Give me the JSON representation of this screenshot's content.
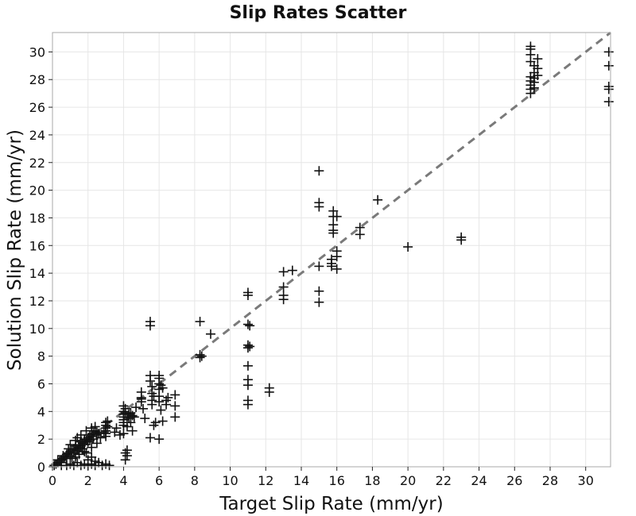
{
  "chart_data": {
    "type": "scatter",
    "title": "Slip Rates Scatter",
    "xlabel": "Target Slip Rate (mm/yr)",
    "ylabel": "Solution Slip Rate (mm/yr)",
    "xlim": [
      0,
      31.4
    ],
    "ylim": [
      0,
      31.4
    ],
    "xticks": [
      0,
      2,
      4,
      6,
      8,
      10,
      12,
      14,
      16,
      18,
      20,
      22,
      24,
      26,
      28,
      30
    ],
    "yticks": [
      0,
      2,
      4,
      6,
      8,
      10,
      12,
      14,
      16,
      18,
      20,
      22,
      24,
      26,
      28,
      30
    ],
    "grid": true,
    "marker": "+",
    "marker_color": "#111111",
    "reference_line": {
      "style": "dashed",
      "color": "#7a7a7a",
      "from": [
        0,
        0
      ],
      "to": [
        31.4,
        31.4
      ]
    },
    "points": [
      [
        0.1,
        0.1
      ],
      [
        0.2,
        0.2
      ],
      [
        0.3,
        0.3
      ],
      [
        0.3,
        0.5
      ],
      [
        0.4,
        0.4
      ],
      [
        0.5,
        0.5
      ],
      [
        0.5,
        0.3
      ],
      [
        0.6,
        0.6
      ],
      [
        0.6,
        0.8
      ],
      [
        0.7,
        0.7
      ],
      [
        0.8,
        0.9
      ],
      [
        0.8,
        0.6
      ],
      [
        0.9,
        1.0
      ],
      [
        1.0,
        1.1
      ],
      [
        1.0,
        0.8
      ],
      [
        1.1,
        1.2
      ],
      [
        1.2,
        1.3
      ],
      [
        1.2,
        1.0
      ],
      [
        1.3,
        1.5
      ],
      [
        1.4,
        1.2
      ],
      [
        1.5,
        1.6
      ],
      [
        1.5,
        1.4
      ],
      [
        1.6,
        1.8
      ],
      [
        1.6,
        1.5
      ],
      [
        1.7,
        1.7
      ],
      [
        1.8,
        2.0
      ],
      [
        1.8,
        1.6
      ],
      [
        1.9,
        1.9
      ],
      [
        2.0,
        2.1
      ],
      [
        2.0,
        1.8
      ],
      [
        2.1,
        2.3
      ],
      [
        2.1,
        1.9
      ],
      [
        2.2,
        2.2
      ],
      [
        2.3,
        2.4
      ],
      [
        2.3,
        2.0
      ],
      [
        2.4,
        2.6
      ],
      [
        2.5,
        2.3
      ],
      [
        2.5,
        2.5
      ],
      [
        1.0,
        1.6
      ],
      [
        0.9,
        1.3
      ],
      [
        1.3,
        1.9
      ],
      [
        1.4,
        2.1
      ],
      [
        1.6,
        2.3
      ],
      [
        1.9,
        2.6
      ],
      [
        2.2,
        2.8
      ],
      [
        2.4,
        2.9
      ],
      [
        1.1,
        0.6
      ],
      [
        1.5,
        0.9
      ],
      [
        1.8,
        1.1
      ],
      [
        2.2,
        1.4
      ],
      [
        2.5,
        1.7
      ],
      [
        2.6,
        2.4
      ],
      [
        2.7,
        2.1
      ],
      [
        1.0,
        0.2
      ],
      [
        1.2,
        0.1
      ],
      [
        1.4,
        0.3
      ],
      [
        1.6,
        0.1
      ],
      [
        1.8,
        0.2
      ],
      [
        2.0,
        0.1
      ],
      [
        2.2,
        0.2
      ],
      [
        2.4,
        0.1
      ],
      [
        2.6,
        0.3
      ],
      [
        2.8,
        0.1
      ],
      [
        3.0,
        0.2
      ],
      [
        3.2,
        0.1
      ],
      [
        0.8,
        0.1
      ],
      [
        0.5,
        0.1
      ],
      [
        2.0,
        0.5
      ],
      [
        2.2,
        0.7
      ],
      [
        2.4,
        0.4
      ],
      [
        1.9,
        1.0
      ],
      [
        1.7,
        1.3
      ],
      [
        1.5,
        1.1
      ],
      [
        1.3,
        0.7
      ],
      [
        3.0,
        3.0
      ],
      [
        3.0,
        2.8
      ],
      [
        3.0,
        2.6
      ],
      [
        3.0,
        3.2
      ],
      [
        3.1,
        2.9
      ],
      [
        3.1,
        3.3
      ],
      [
        3.0,
        2.4
      ],
      [
        3.0,
        2.2
      ],
      [
        2.9,
        2.5
      ],
      [
        3.5,
        2.5
      ],
      [
        3.6,
        2.8
      ],
      [
        3.8,
        2.3
      ],
      [
        4.0,
        4.0
      ],
      [
        4.0,
        3.8
      ],
      [
        4.0,
        3.6
      ],
      [
        4.0,
        3.4
      ],
      [
        4.0,
        3.2
      ],
      [
        4.0,
        3.0
      ],
      [
        4.1,
        3.9
      ],
      [
        4.1,
        4.2
      ],
      [
        4.0,
        4.4
      ],
      [
        4.2,
        3.6
      ],
      [
        4.3,
        3.5
      ],
      [
        4.3,
        3.8
      ],
      [
        4.4,
        3.9
      ],
      [
        4.2,
        2.9
      ],
      [
        4.5,
        2.6
      ],
      [
        4.4,
        3.2
      ],
      [
        4.0,
        2.4
      ],
      [
        4.1,
        1.0
      ],
      [
        4.2,
        0.8
      ],
      [
        4.1,
        0.5
      ],
      [
        4.2,
        1.2
      ],
      [
        4.5,
        3.7
      ],
      [
        4.6,
        3.6
      ],
      [
        4.7,
        4.3
      ],
      [
        5.0,
        5.0
      ],
      [
        5.0,
        5.4
      ],
      [
        5.0,
        4.7
      ],
      [
        5.1,
        4.2
      ],
      [
        5.2,
        3.5
      ],
      [
        5.0,
        4.9
      ],
      [
        5.5,
        6.6
      ],
      [
        5.5,
        6.2
      ],
      [
        5.6,
        5.8
      ],
      [
        5.6,
        5.3
      ],
      [
        5.7,
        5.1
      ],
      [
        5.6,
        4.8
      ],
      [
        5.6,
        4.5
      ],
      [
        5.7,
        3.0
      ],
      [
        5.5,
        2.1
      ],
      [
        5.8,
        3.2
      ],
      [
        6.0,
        6.0
      ],
      [
        6.0,
        6.4
      ],
      [
        6.0,
        5.6
      ],
      [
        6.1,
        5.9
      ],
      [
        6.2,
        5.7
      ],
      [
        6.0,
        5.1
      ],
      [
        6.0,
        4.7
      ],
      [
        6.1,
        4.1
      ],
      [
        6.2,
        3.3
      ],
      [
        6.0,
        2.0
      ],
      [
        6.4,
        4.8
      ],
      [
        6.4,
        4.5
      ],
      [
        6.5,
        5.0
      ],
      [
        6.0,
        6.6
      ],
      [
        6.9,
        5.2
      ],
      [
        6.9,
        4.4
      ],
      [
        6.9,
        3.6
      ],
      [
        5.5,
        10.5
      ],
      [
        5.5,
        10.2
      ],
      [
        8.3,
        10.5
      ],
      [
        8.3,
        8.1
      ],
      [
        8.3,
        7.9
      ],
      [
        8.4,
        8.0
      ],
      [
        8.9,
        9.6
      ],
      [
        11.0,
        12.6
      ],
      [
        11.0,
        12.4
      ],
      [
        11.0,
        10.3
      ],
      [
        11.1,
        10.2
      ],
      [
        11.0,
        8.8
      ],
      [
        11.0,
        8.6
      ],
      [
        11.1,
        8.7
      ],
      [
        11.0,
        7.3
      ],
      [
        11.0,
        6.3
      ],
      [
        11.0,
        5.9
      ],
      [
        11.0,
        4.8
      ],
      [
        11.0,
        4.5
      ],
      [
        12.2,
        5.7
      ],
      [
        12.2,
        5.4
      ],
      [
        13.0,
        14.1
      ],
      [
        13.0,
        13.0
      ],
      [
        13.0,
        12.4
      ],
      [
        13.0,
        12.1
      ],
      [
        13.5,
        14.2
      ],
      [
        15.0,
        21.4
      ],
      [
        15.0,
        19.1
      ],
      [
        15.0,
        18.8
      ],
      [
        15.0,
        14.5
      ],
      [
        15.0,
        12.7
      ],
      [
        15.0,
        11.9
      ],
      [
        15.8,
        18.5
      ],
      [
        15.8,
        18.1
      ],
      [
        15.8,
        17.5
      ],
      [
        15.8,
        17.1
      ],
      [
        15.8,
        16.9
      ],
      [
        15.7,
        15.0
      ],
      [
        15.7,
        14.7
      ],
      [
        15.7,
        14.5
      ],
      [
        16.0,
        18.1
      ],
      [
        16.0,
        15.6
      ],
      [
        16.0,
        15.2
      ],
      [
        16.0,
        14.3
      ],
      [
        17.3,
        17.3
      ],
      [
        17.3,
        16.8
      ],
      [
        18.3,
        19.3
      ],
      [
        20.0,
        15.9
      ],
      [
        23.0,
        16.6
      ],
      [
        23.0,
        16.4
      ],
      [
        26.9,
        30.4
      ],
      [
        26.9,
        30.2
      ],
      [
        26.9,
        29.8
      ],
      [
        26.9,
        29.3
      ],
      [
        26.9,
        28.2
      ],
      [
        26.9,
        27.9
      ],
      [
        26.9,
        27.6
      ],
      [
        26.9,
        27.3
      ],
      [
        26.9,
        27.0
      ],
      [
        27.1,
        29.0
      ],
      [
        27.1,
        28.5
      ],
      [
        27.1,
        28.1
      ],
      [
        27.1,
        27.8
      ],
      [
        27.1,
        27.4
      ],
      [
        27.3,
        29.5
      ],
      [
        27.3,
        28.8
      ],
      [
        27.3,
        28.3
      ],
      [
        31.3,
        30.0
      ],
      [
        31.3,
        29.0
      ],
      [
        31.3,
        27.5
      ],
      [
        31.3,
        27.3
      ],
      [
        31.3,
        26.4
      ]
    ]
  }
}
